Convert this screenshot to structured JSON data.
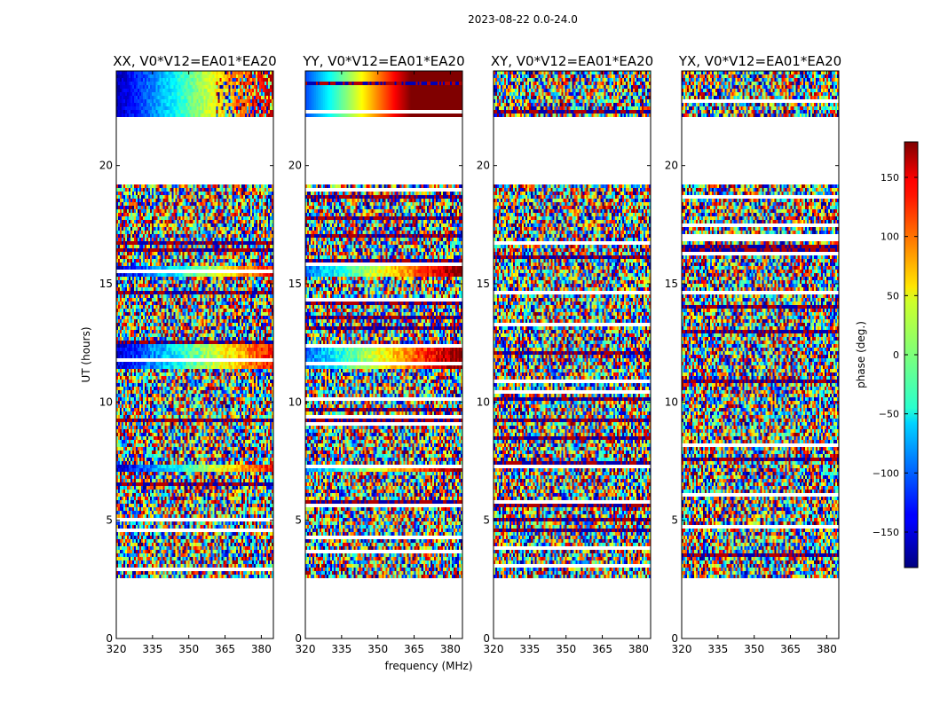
{
  "suptitle": "2023-08-22 0.0-24.0",
  "chart_data": {
    "type": "heatmap",
    "ylabel": "UT (hours)",
    "xlabel": "frequency (MHz)",
    "xlim": [
      320,
      385
    ],
    "ylim": [
      0,
      24
    ],
    "xticks": [
      "320",
      "335",
      "350",
      "365",
      "380"
    ],
    "xtick_values": [
      320,
      335,
      350,
      365,
      380
    ],
    "yticks": [
      "0",
      "5",
      "10",
      "15",
      "20"
    ],
    "ytick_values": [
      0,
      5,
      10,
      15,
      20
    ],
    "data_gaps_hours": [
      [
        0,
        2.55
      ],
      [
        22,
        22.1
      ],
      [
        19.2,
        22
      ]
    ],
    "panels": [
      {
        "title": "XX, V0*V12=EA01*EA20",
        "pol": "XX"
      },
      {
        "title": "YY, V0*V12=EA01*EA20",
        "pol": "YY"
      },
      {
        "title": "XY, V0*V12=EA01*EA20",
        "pol": "XY"
      },
      {
        "title": "YX, V0*V12=EA01*EA20",
        "pol": "YX"
      }
    ],
    "colorbar": {
      "label": "phase (deg.)",
      "range": [
        -180,
        180
      ],
      "ticks": [
        "150",
        "100",
        "50",
        "0",
        "−50",
        "−100",
        "−150"
      ],
      "tick_values": [
        150,
        100,
        50,
        0,
        -50,
        -100,
        -150
      ]
    }
  }
}
